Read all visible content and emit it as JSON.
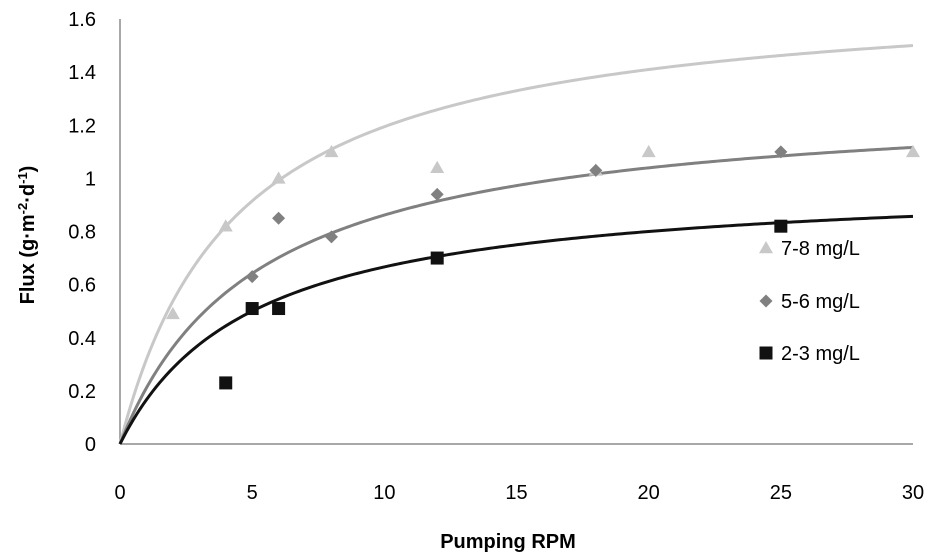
{
  "chart_data": {
    "type": "scatter",
    "xlabel": "Pumping RPM",
    "ylabel": {
      "text": "Flux (g·m",
      "sup1": "-2",
      "mid": "·d",
      "sup2": "-1",
      "end": ")"
    },
    "xlim": [
      0,
      30
    ],
    "ylim": [
      0,
      1.6
    ],
    "x_ticks": [
      0,
      5,
      10,
      15,
      20,
      25,
      30
    ],
    "y_ticks": [
      0,
      0.2,
      0.4,
      0.6,
      0.8,
      1,
      1.2,
      1.4,
      1.6
    ],
    "x_tick_labels": [
      "0",
      "5",
      "10",
      "15",
      "20",
      "25",
      "30"
    ],
    "y_tick_labels": [
      "0",
      "0.2",
      "0.4",
      "0.6",
      "0.8",
      "1",
      "1.2",
      "1.4",
      "1.6"
    ],
    "grid": false,
    "legend_position": "right",
    "series": [
      {
        "name": "7-8 mg/L",
        "marker": "triangle",
        "color": "#c8c8c8",
        "points": [
          {
            "x": 2,
            "y": 0.49
          },
          {
            "x": 4,
            "y": 0.82
          },
          {
            "x": 6,
            "y": 1.0
          },
          {
            "x": 8,
            "y": 1.1
          },
          {
            "x": 12,
            "y": 1.04
          },
          {
            "x": 18,
            "y": 1.03
          },
          {
            "x": 20,
            "y": 1.1
          },
          {
            "x": 30,
            "y": 1.1
          }
        ],
        "fit": {
          "vmax": 1.72,
          "k": 4.4
        }
      },
      {
        "name": "5-6 mg/L",
        "marker": "diamond",
        "color": "#808080",
        "points": [
          {
            "x": 5,
            "y": 0.63
          },
          {
            "x": 6,
            "y": 0.85
          },
          {
            "x": 8,
            "y": 0.78
          },
          {
            "x": 12,
            "y": 0.94
          },
          {
            "x": 18,
            "y": 1.03
          },
          {
            "x": 25,
            "y": 1.1
          }
        ],
        "fit": {
          "vmax": 1.31,
          "k": 5.2
        }
      },
      {
        "name": "2-3 mg/L",
        "marker": "square",
        "color": "#111111",
        "points": [
          {
            "x": 4,
            "y": 0.23
          },
          {
            "x": 5,
            "y": 0.51
          },
          {
            "x": 6,
            "y": 0.51
          },
          {
            "x": 12,
            "y": 0.7
          },
          {
            "x": 25,
            "y": 0.82
          }
        ],
        "fit": {
          "vmax": 1.0,
          "k": 5.0
        }
      }
    ]
  }
}
